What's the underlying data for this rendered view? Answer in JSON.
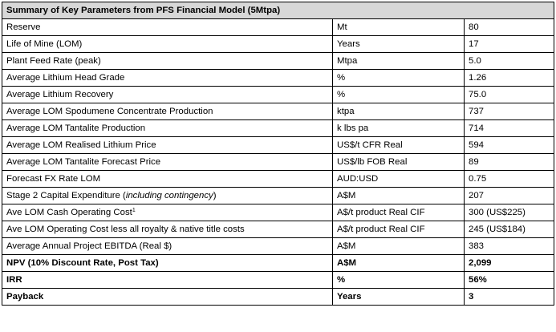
{
  "table": {
    "title": "Summary of Key Parameters from PFS Financial Model (5Mtpa)",
    "rows": [
      {
        "param": "Reserve",
        "unit": "Mt",
        "value": "80"
      },
      {
        "param": "Life of Mine (LOM)",
        "unit": "Years",
        "value": "17"
      },
      {
        "param": "Plant Feed Rate (peak)",
        "unit": "Mtpa",
        "value": "5.0"
      },
      {
        "param": "Average Lithium Head Grade",
        "unit": "%",
        "value": "1.26"
      },
      {
        "param": "Average Lithium Recovery",
        "unit": "%",
        "value": "75.0"
      },
      {
        "param": "Average LOM Spodumene Concentrate Production",
        "unit": "ktpa",
        "value": "737"
      },
      {
        "param": "Average LOM Tantalite Production",
        "unit": "k lbs pa",
        "value": "714"
      },
      {
        "param": "Average LOM Realised Lithium Price",
        "unit": "US$/t CFR Real",
        "value": "594"
      },
      {
        "param": "Average LOM Tantalite Forecast Price",
        "unit": "US$/lb FOB Real",
        "value": "89"
      },
      {
        "param": "Forecast FX Rate LOM",
        "unit": "AUD:USD",
        "value": "0.75"
      },
      {
        "param": "Stage 2 Capital Expenditure (",
        "param_italic": "including contingency",
        "param_suffix": ")",
        "unit": "A$M",
        "value": "207"
      },
      {
        "param": "Ave LOM Cash Operating Cost",
        "param_sup": "1",
        "unit": "A$/t product Real CIF",
        "value": "300 (US$225)"
      },
      {
        "param": "Ave LOM Operating Cost less all royalty & native title costs",
        "unit": "A$/t product Real CIF",
        "value": "245 (US$184)"
      },
      {
        "param": "Average Annual Project EBITDA (Real $)",
        "unit": "A$M",
        "value": "383"
      },
      {
        "param": "NPV (10% Discount Rate, Post Tax)",
        "unit": "A$M",
        "value": "2,099"
      },
      {
        "param": "IRR",
        "unit": "%",
        "value": "56%"
      },
      {
        "param": "Payback",
        "unit": "Years",
        "value": "3"
      }
    ]
  }
}
